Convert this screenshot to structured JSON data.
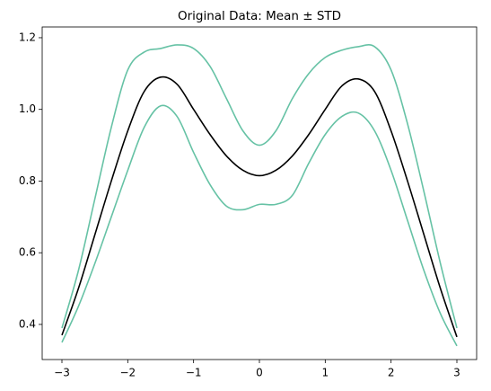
{
  "chart_data": {
    "type": "line",
    "title": "Original Data: Mean ± STD",
    "x": [
      -3,
      -2.75,
      -2.5,
      -2.25,
      -2,
      -1.75,
      -1.5,
      -1.25,
      -1,
      -0.75,
      -0.5,
      -0.25,
      0,
      0.25,
      0.5,
      0.75,
      1,
      1.25,
      1.5,
      1.75,
      2,
      2.25,
      2.5,
      2.75,
      3
    ],
    "series": [
      {
        "color": "#66c2a5",
        "values": [
          0.39,
          0.55,
          0.75,
          0.95,
          1.11,
          1.16,
          1.17,
          1.18,
          1.17,
          1.12,
          1.03,
          0.94,
          0.9,
          0.94,
          1.03,
          1.1,
          1.145,
          1.165,
          1.175,
          1.175,
          1.11,
          0.96,
          0.77,
          0.57,
          0.39
        ]
      },
      {
        "color": "#66c2a5",
        "values": [
          0.35,
          0.45,
          0.57,
          0.7,
          0.83,
          0.95,
          1.01,
          0.98,
          0.88,
          0.79,
          0.73,
          0.72,
          0.735,
          0.735,
          0.76,
          0.85,
          0.93,
          0.98,
          0.99,
          0.94,
          0.83,
          0.69,
          0.55,
          0.43,
          0.34
        ]
      },
      {
        "color": "#000000",
        "values": [
          0.37,
          0.5,
          0.65,
          0.8,
          0.94,
          1.05,
          1.09,
          1.07,
          1.0,
          0.93,
          0.87,
          0.83,
          0.815,
          0.83,
          0.87,
          0.93,
          1.0,
          1.065,
          1.085,
          1.05,
          0.94,
          0.8,
          0.65,
          0.5,
          0.365
        ]
      }
    ],
    "xlim": [
      -3.3,
      3.3
    ],
    "xticks": [
      {
        "value": -3,
        "label": "−3"
      },
      {
        "value": -2,
        "label": "−2"
      },
      {
        "value": -1,
        "label": "−1"
      },
      0,
      1,
      2,
      3
    ],
    "ylim": [
      0.302,
      1.23
    ],
    "yticks": [
      0.4,
      0.6,
      0.8,
      {
        "value": 1.0,
        "label": "1.0"
      },
      1.2
    ]
  }
}
